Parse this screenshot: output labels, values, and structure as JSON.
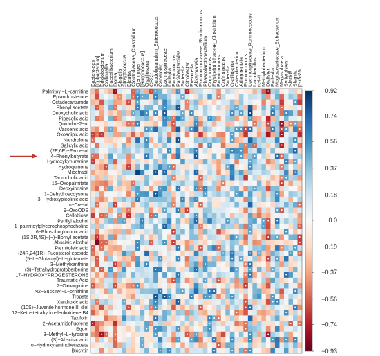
{
  "chart_data": {
    "type": "heatmap",
    "title": "",
    "xlabel": "",
    "ylabel": "",
    "columns": [
      "Bacteroides",
      "[Eubacterium]",
      "Bifidobacterium",
      "Collinsella",
      "Faecalibacterium",
      "Dorea",
      "Shigella",
      "Streptococcus",
      "Blautia",
      "Clostridiaceae_Clostridium",
      "Gemmiger",
      "[Ruminococcus]",
      "Oscillospira",
      "CF231",
      "Subdoligranulum_Enterococcus",
      "Ceneroier",
      "Lachnospiraceae",
      "Bulleidia",
      "Butyricicoccus",
      "Parabacteroides",
      "Sutterella",
      "Citrobacter",
      "Prevotella",
      "Akkermansia",
      "Ruminococcaceae_Ruminococcus",
      "Phascolarctobacterium",
      "Coprococcus",
      "Erysipelotrichaceae_Clostridium",
      "Butyricimonas",
      "Coprococcus",
      "Sutterella",
      "Oscillospira",
      "Catenibacterium",
      "Adlercreutzia",
      "Ruminococcus",
      "Lachnospiraceae_Ruminococcus",
      "Lactobacillus",
      "rc4-4",
      "Methylobacterium",
      "Dialister",
      "Bulleidia",
      "Mogibacteriaceae_Eubacterium",
      "Megasphaera",
      "Synergistes",
      "Slackia",
      "Slagsia",
      "p-75-a5"
    ],
    "rows": [
      "Palmitoyl−L−carnitine",
      "Epiandrosterone",
      "Octadecanamide",
      "Phenyl acetate",
      "Deoxycholic acid",
      "Pipecolic acid",
      "Quinolin−2−ol",
      "Vaccenic acid",
      "Oxoadipic acid",
      "Nandrolone",
      "Salicylic acid",
      "(2E,6E)−Farnesol",
      "4−Phenylbutyrate",
      "Hydroxykynurenine",
      "Hydroquinone",
      "Mibefradil",
      "Taurocholic acid",
      "16−Oxopalmitate",
      "Deoxyinosine",
      "3−Dehydroecdysone",
      "3−Hydroxypicolinic acid",
      "m−Cresol",
      "9−OxoODE",
      "Cellobiose",
      "Perillyl alcohol",
      "1−palmitoylglycerophosphocholine",
      "6−Phosphogluconic acid",
      "(1S,2R,4S)−(−)−Bornyl acetate",
      "Abscisic alcohol",
      "Palmitoleic acid",
      "(24R,24(1R)−Fucosterol epoxide",
      "(5−L−Glutamyl)−L−glutamate",
      "3−Methylxanthine",
      "(S)−Tetrahydroprotoberberine",
      "17−HYDROXYPROGESTERONE",
      "Traumatic Acid",
      "2−Oxoarginine",
      "N2−Succinyl−L−ornithine",
      "Tropate",
      "Xanthoxic acid",
      "(10S)−Juvenile hormone III diol",
      "12−Keto−tetrahydro−leukotriene B4",
      "Taxifolin",
      "2−Acetamidofluorene",
      "Equol",
      "3−Methyl−L−tyrosine",
      "(S)−Abscisic acid",
      "o−Hydroxylaminobenzoate",
      "Biocytin"
    ],
    "colorbar": {
      "min": -0.93,
      "max": 0.92,
      "ticks": [
        "0.92",
        "0.74",
        "0.56",
        "0.37",
        "0.18",
        "0.0",
        "−0.19",
        "−0.37",
        "−0.56",
        "−0.74",
        "−0.93"
      ],
      "tick_values": [
        0.92,
        0.74,
        0.56,
        0.37,
        0.18,
        0.0,
        -0.19,
        -0.37,
        -0.56,
        -0.74,
        -0.93
      ],
      "colors": [
        "#67001f",
        "#b2182b",
        "#d6604d",
        "#f4a582",
        "#fddbc7",
        "#f7f7f7",
        "#d1e5f0",
        "#92c5de",
        "#4393c3",
        "#2166ac",
        "#053061"
      ]
    },
    "significance_marker": "•",
    "highlighted_row": "4−Phenylbutyrate",
    "arrow_color": "#c0392b"
  }
}
